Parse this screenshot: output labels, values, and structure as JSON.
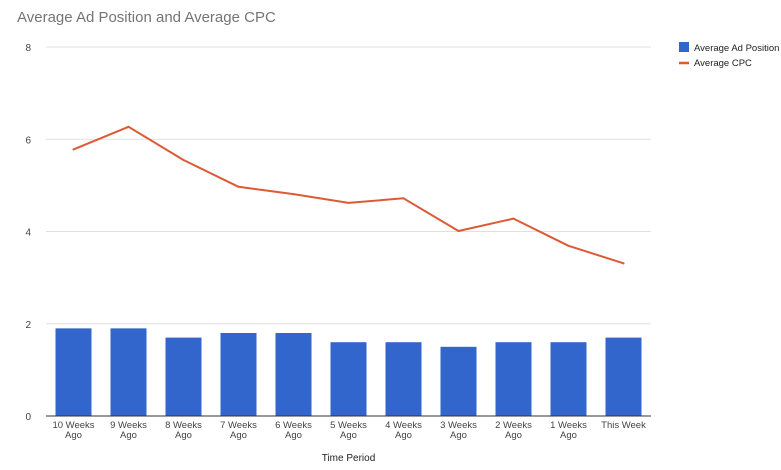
{
  "chart_data": {
    "type": "bar",
    "title": "Average Ad Position and Average CPC",
    "xlabel": "Time Period",
    "ylabel": "",
    "ylim": [
      0,
      8
    ],
    "yticks": [
      0,
      2,
      4,
      6,
      8
    ],
    "grid": true,
    "legend_position": "top-right",
    "categories": [
      [
        "10 Weeks",
        "Ago"
      ],
      [
        "9 Weeks",
        "Ago"
      ],
      [
        "8 Weeks",
        "Ago"
      ],
      [
        "7 Weeks",
        "Ago"
      ],
      [
        "6 Weeks",
        "Ago"
      ],
      [
        "5 Weeks",
        "Ago"
      ],
      [
        "4 Weeks",
        "Ago"
      ],
      [
        "3 Weeks",
        "Ago"
      ],
      [
        "2 Weeks",
        "Ago"
      ],
      [
        "1 Weeks",
        "Ago"
      ],
      [
        "This Week"
      ]
    ],
    "series": [
      {
        "name": "Average Ad Position",
        "type": "bar",
        "color": "#3366cc",
        "values": [
          1.9,
          1.9,
          1.7,
          1.8,
          1.8,
          1.6,
          1.6,
          1.5,
          1.6,
          1.6,
          1.7
        ]
      },
      {
        "name": "Average CPC",
        "type": "line",
        "color": "#dc5a35",
        "values": [
          5.78,
          6.27,
          5.55,
          4.97,
          4.81,
          4.62,
          4.72,
          4.01,
          4.28,
          3.69,
          3.31
        ]
      }
    ]
  }
}
